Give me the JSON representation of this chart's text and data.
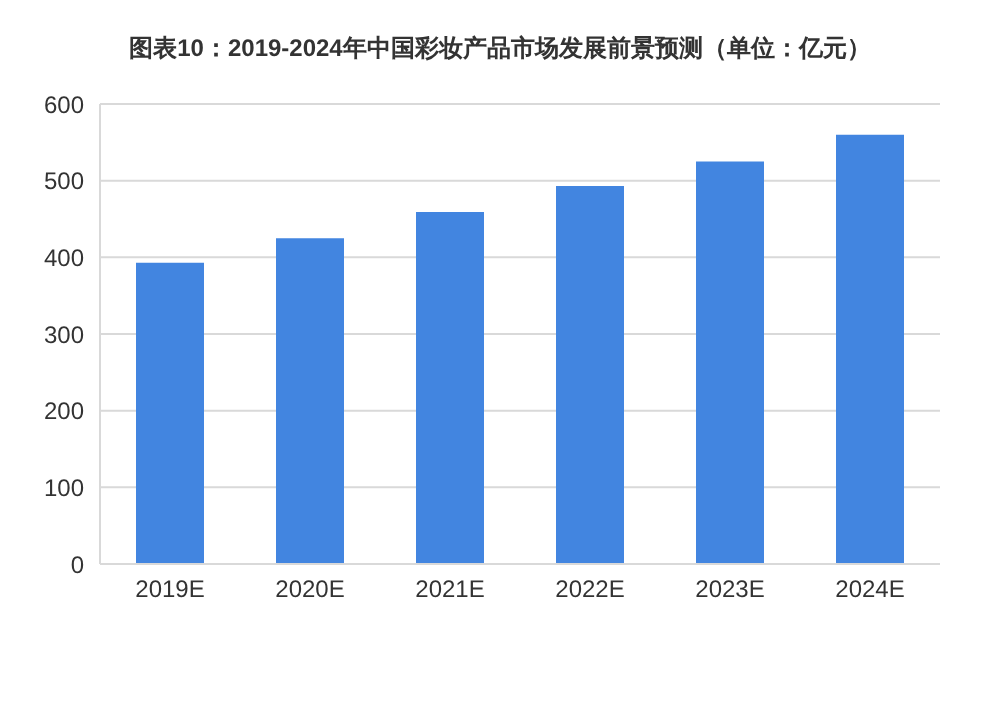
{
  "chart_data": {
    "type": "bar",
    "title": "图表10：2019-2024年中国彩妆产品市场发展前景预测（单位：亿元）",
    "categories": [
      "2019E",
      "2020E",
      "2021E",
      "2022E",
      "2023E",
      "2024E"
    ],
    "values": [
      393,
      425,
      459,
      493,
      525,
      560
    ],
    "color": "#4285e0",
    "ylim": [
      0,
      600
    ],
    "yticks": [
      0,
      100,
      200,
      300,
      400,
      500,
      600
    ],
    "grid": "y"
  }
}
